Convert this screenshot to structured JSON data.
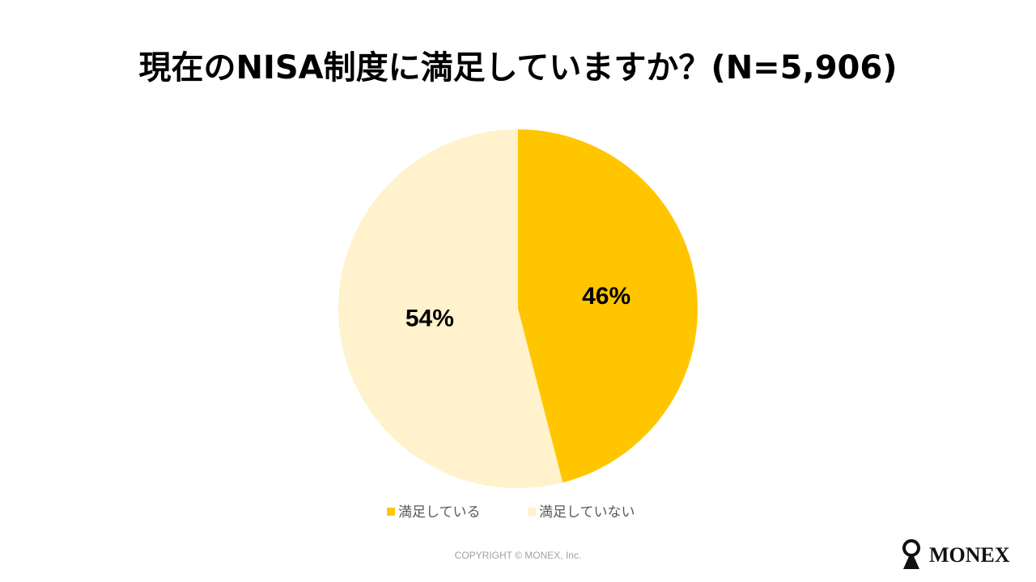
{
  "chart_data": {
    "type": "pie",
    "title": "現在のNISA制度に満足していますか？(N=5,906)",
    "categories": [
      "満足している",
      "満足していない"
    ],
    "values": [
      46,
      54
    ],
    "value_labels": [
      "46%",
      "54%"
    ],
    "colors": [
      "#FFC600",
      "#FFF2CC"
    ],
    "legend": "bottom"
  },
  "footer": {
    "copyright": "COPYRIGHT © MONEX, Inc.",
    "logo": "MONEX"
  }
}
